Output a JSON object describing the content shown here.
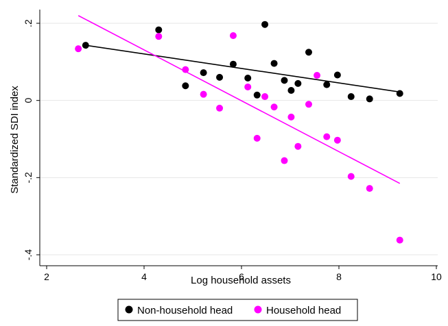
{
  "chart_data": {
    "type": "scatter",
    "title": "",
    "xlabel": "Log household assets",
    "ylabel": "Standardized SDI index",
    "xlim": [
      2,
      10
    ],
    "ylim": [
      -0.4,
      0.2
    ],
    "xticks": [
      {
        "value": 2,
        "label": "2"
      },
      {
        "value": 4,
        "label": "4"
      },
      {
        "value": 6,
        "label": "6"
      },
      {
        "value": 8,
        "label": "8"
      },
      {
        "value": 10,
        "label": "10"
      }
    ],
    "yticks": [
      {
        "value": -0.4,
        "label": "-.4"
      },
      {
        "value": -0.2,
        "label": "-.2"
      },
      {
        "value": 0,
        "label": "0"
      },
      {
        "value": 0.2,
        "label": ".2"
      }
    ],
    "grid": "horizontal",
    "legend_position": "bottom",
    "series": [
      {
        "name": "Non-household head",
        "color": "#000000",
        "points": [
          {
            "x": 2.8,
            "y": 0.143
          },
          {
            "x": 4.3,
            "y": 0.183
          },
          {
            "x": 4.85,
            "y": 0.038
          },
          {
            "x": 5.22,
            "y": 0.072
          },
          {
            "x": 5.55,
            "y": 0.06
          },
          {
            "x": 5.83,
            "y": 0.094
          },
          {
            "x": 6.13,
            "y": 0.058
          },
          {
            "x": 6.32,
            "y": 0.014
          },
          {
            "x": 6.48,
            "y": 0.197
          },
          {
            "x": 6.67,
            "y": 0.096
          },
          {
            "x": 6.88,
            "y": 0.052
          },
          {
            "x": 7.02,
            "y": 0.026
          },
          {
            "x": 7.16,
            "y": 0.044
          },
          {
            "x": 7.38,
            "y": 0.125
          },
          {
            "x": 7.75,
            "y": 0.041
          },
          {
            "x": 7.97,
            "y": 0.066
          },
          {
            "x": 8.25,
            "y": 0.01
          },
          {
            "x": 8.63,
            "y": 0.004
          },
          {
            "x": 9.25,
            "y": 0.018
          }
        ],
        "fit": {
          "x": [
            2.8,
            9.25
          ],
          "y": [
            0.143,
            0.022
          ]
        }
      },
      {
        "name": "Household head",
        "color": "#ff00ff",
        "points": [
          {
            "x": 2.65,
            "y": 0.134
          },
          {
            "x": 4.3,
            "y": 0.166
          },
          {
            "x": 4.85,
            "y": 0.08
          },
          {
            "x": 5.22,
            "y": 0.016
          },
          {
            "x": 5.55,
            "y": -0.02
          },
          {
            "x": 5.83,
            "y": 0.168
          },
          {
            "x": 6.13,
            "y": 0.035
          },
          {
            "x": 6.32,
            "y": -0.098
          },
          {
            "x": 6.48,
            "y": 0.01
          },
          {
            "x": 6.67,
            "y": -0.017
          },
          {
            "x": 6.88,
            "y": -0.156
          },
          {
            "x": 7.02,
            "y": -0.043
          },
          {
            "x": 7.16,
            "y": -0.119
          },
          {
            "x": 7.38,
            "y": -0.01
          },
          {
            "x": 7.55,
            "y": 0.065
          },
          {
            "x": 7.75,
            "y": -0.094
          },
          {
            "x": 7.97,
            "y": -0.103
          },
          {
            "x": 8.25,
            "y": -0.197
          },
          {
            "x": 8.63,
            "y": -0.228
          },
          {
            "x": 9.25,
            "y": -0.362
          }
        ],
        "fit": {
          "x": [
            2.65,
            9.25
          ],
          "y": [
            0.22,
            -0.215
          ]
        }
      }
    ]
  }
}
